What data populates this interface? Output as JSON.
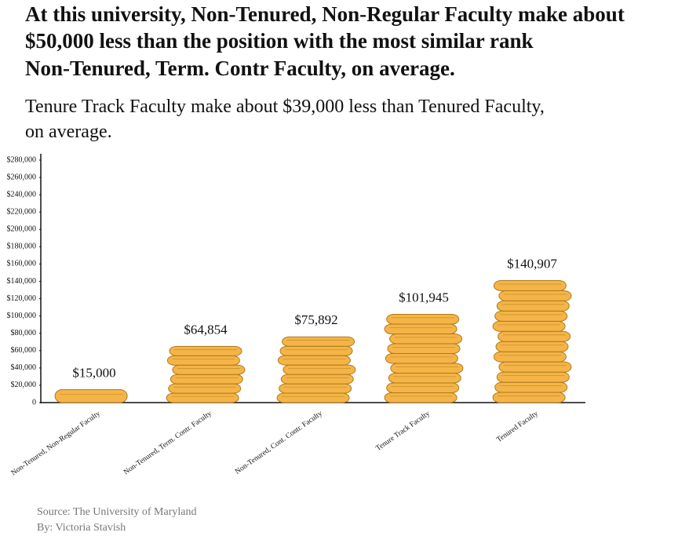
{
  "chart_data": {
    "type": "bar",
    "title_lines": [
      "At this university, Non-Tenured, Non-Regular Faculty make about",
      "$50,000 less than the position with the most similar rank",
      "Non-Tenured, Term. Contr Faculty, on average."
    ],
    "subtitle_lines": [
      "Tenure Track Faculty make about $39,000 less than Tenured Faculty,",
      "on average."
    ],
    "categories": [
      "Non-Tenured, Non-Regular Faculty",
      "Non-Tenured, Term. Contr. Faculty",
      "Non-Tenured, Cont. Contr. Faculty",
      "Tenure Track Faculty",
      "Tenured Faculty"
    ],
    "values": [
      15000,
      64854,
      75892,
      101945,
      140907
    ],
    "value_labels": [
      "$15,000",
      "$64,854",
      "$75,892",
      "$101,945",
      "$140,907"
    ],
    "color": "#f4b447",
    "ylim": [
      0,
      280000
    ],
    "yticks": [
      0,
      {
        "value": 20000,
        "label": "$20,000"
      },
      {
        "value": 40000,
        "label": "$40,000"
      },
      {
        "value": 60000,
        "label": "$60,000"
      },
      {
        "value": 80000,
        "label": "$80,000"
      },
      {
        "value": 100000,
        "label": "$100,000"
      },
      {
        "value": 120000,
        "label": "$120,000"
      },
      {
        "value": 140000,
        "label": "$140,000"
      },
      {
        "value": 160000,
        "label": "$160,000"
      },
      {
        "value": 180000,
        "label": "$180,000"
      },
      {
        "value": 200000,
        "label": "$200,000"
      },
      {
        "value": 220000,
        "label": "$220,000"
      },
      {
        "value": 240000,
        "label": "$240,000"
      },
      {
        "value": 260000,
        "label": "$260,000"
      },
      {
        "value": 280000,
        "label": "$280,000"
      }
    ],
    "source": "Source: The University of Maryland",
    "byline": "By: Victoria Stavish"
  }
}
